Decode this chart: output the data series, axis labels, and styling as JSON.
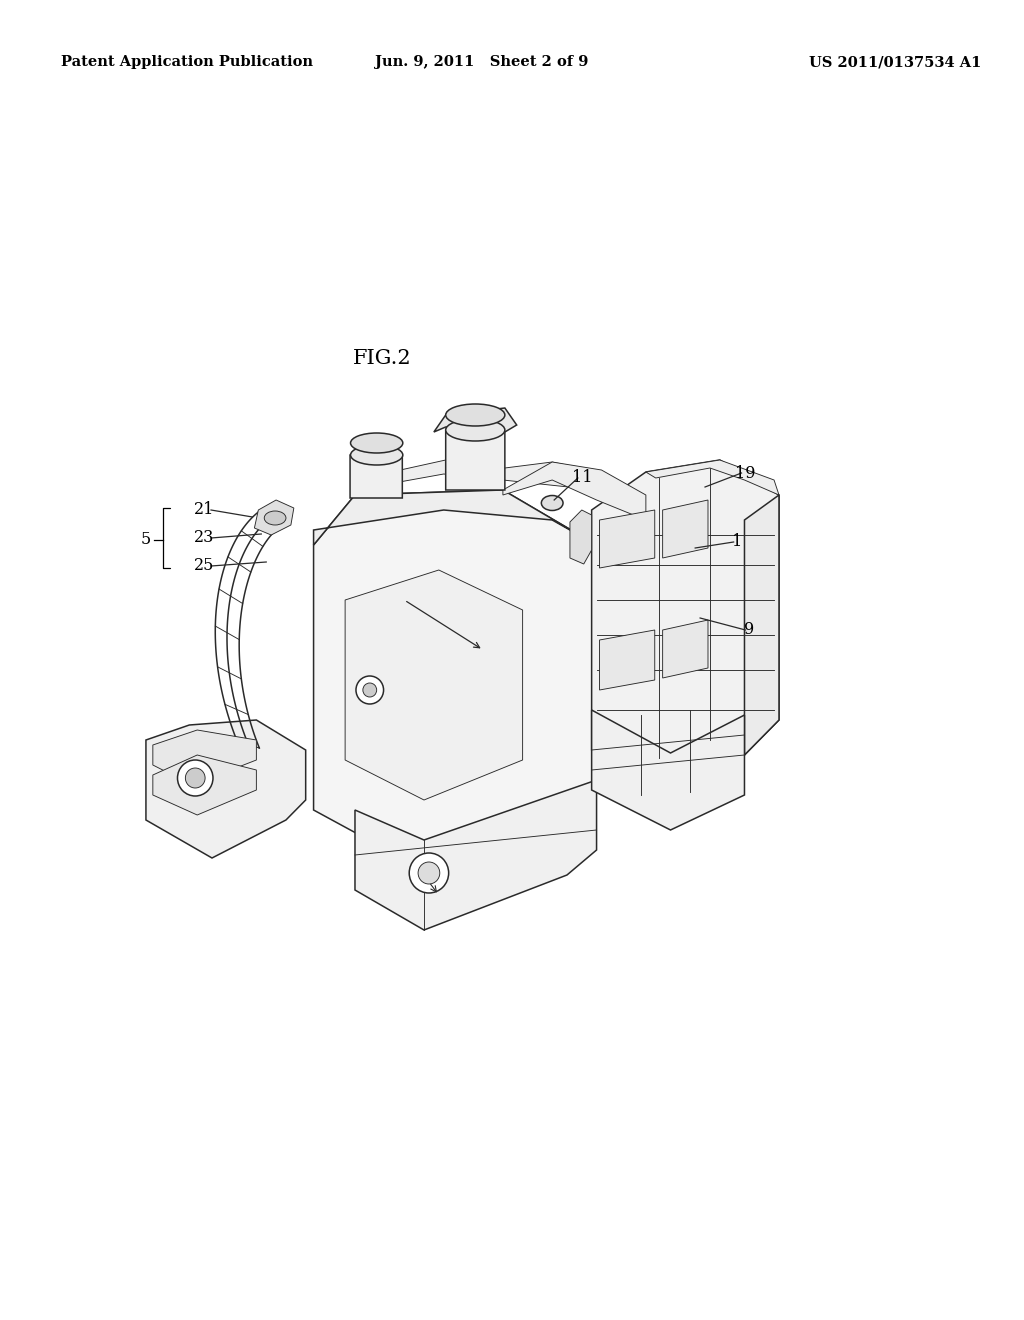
{
  "background_color": "#ffffff",
  "line_color": "#2a2a2a",
  "header_left": "Patent Application Publication",
  "header_center": "Jun. 9, 2011   Sheet 2 of 9",
  "header_right": "US 2011/0137534 A1",
  "fig_label": "FIG.2",
  "header_fontsize": 10.5,
  "fig_label_fontsize": 15,
  "label_fontsize": 11.5,
  "lw_main": 1.1,
  "lw_thin": 0.65,
  "lw_heavy": 1.5
}
